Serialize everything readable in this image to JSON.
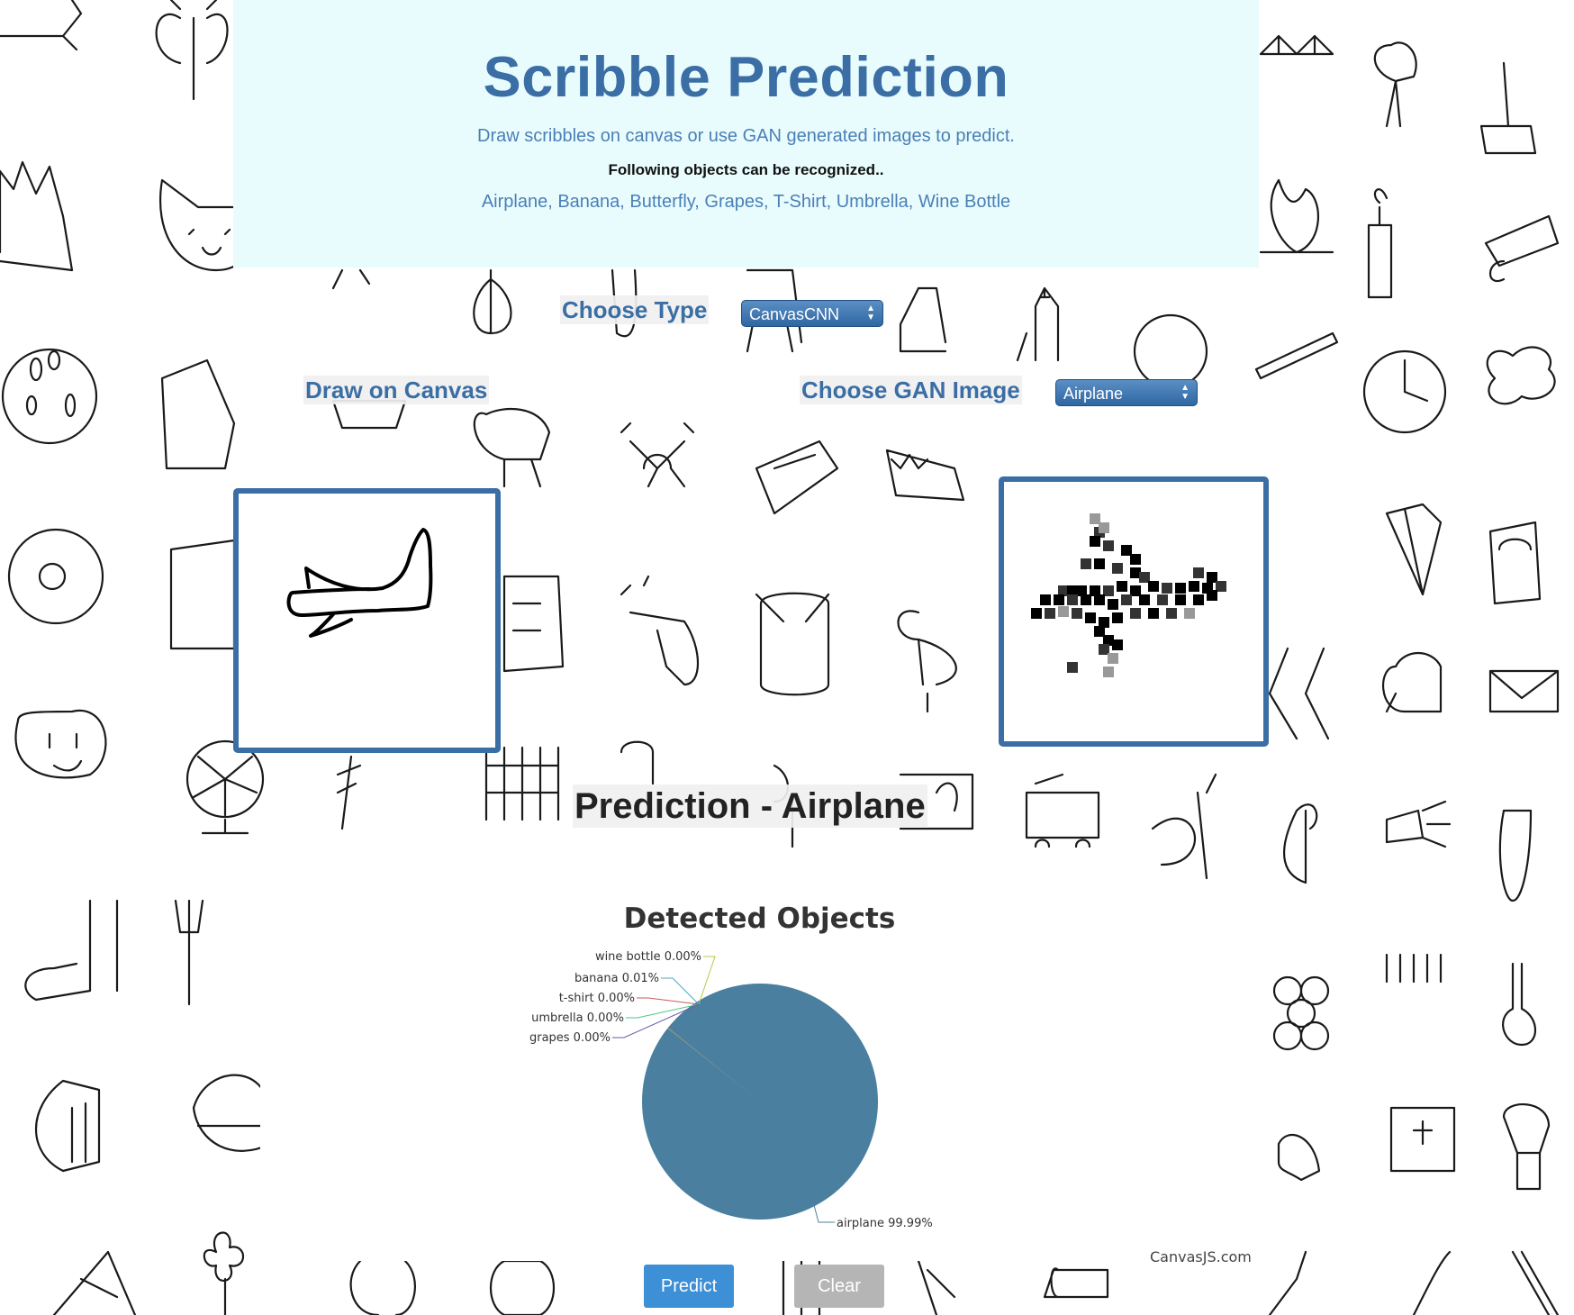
{
  "header": {
    "title": "Scribble Prediction",
    "subtitle": "Draw scribbles on canvas or use GAN generated images to predict.",
    "note": "Following objects can be recognized..",
    "objects": "Airplane, Banana, Butterfly, Grapes, T-Shirt, Umbrella, Wine Bottle"
  },
  "controls": {
    "choose_type_label": "Choose Type",
    "type_select_value": "CanvasCNN",
    "draw_label": "Draw on Canvas",
    "gan_label": "Choose GAN Image",
    "gan_select_value": "Airplane"
  },
  "prediction": {
    "text": "Prediction - Airplane"
  },
  "chart_data": {
    "type": "pie",
    "title": "Detected Objects",
    "slices": [
      {
        "label": "airplane 99.99%",
        "name": "airplane",
        "value": 99.99,
        "color": "#4a7f9f"
      },
      {
        "label": "wine bottle 0.00%",
        "name": "wine bottle",
        "value": 0.0,
        "color": "#b8c84a"
      },
      {
        "label": "banana 0.01%",
        "name": "banana",
        "value": 0.01,
        "color": "#4aa8c8"
      },
      {
        "label": "t-shirt 0.00%",
        "name": "t-shirt",
        "value": 0.0,
        "color": "#c85a5a"
      },
      {
        "label": "umbrella 0.00%",
        "name": "umbrella",
        "value": 0.0,
        "color": "#4ac88a"
      },
      {
        "label": "grapes 0.00%",
        "name": "grapes",
        "value": 0.0,
        "color": "#6a5aa8"
      }
    ]
  },
  "credit": "CanvasJS.com",
  "buttons": {
    "predict": "Predict",
    "clear": "Clear"
  }
}
